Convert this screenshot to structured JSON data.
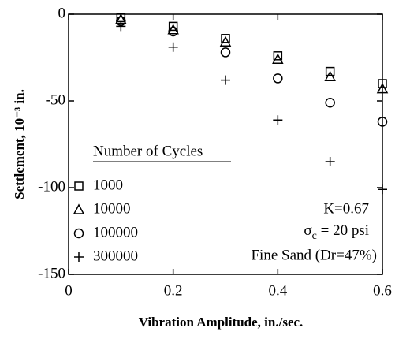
{
  "chart_data": {
    "type": "scatter",
    "xlabel": "Vibration Amplitude, in./sec.",
    "ylabel": "Settlement, 10⁻³ in.",
    "x": [
      0.1,
      0.2,
      0.3,
      0.4,
      0.5,
      0.6
    ],
    "series": [
      {
        "name": "1000",
        "marker": "square",
        "color": "#000000",
        "values": [
          -2,
          -7,
          -14,
          -24,
          -33,
          -40
        ]
      },
      {
        "name": "10000",
        "marker": "triangle",
        "color": "#000000",
        "values": [
          -3,
          -9,
          -16,
          -26,
          -36,
          -43
        ]
      },
      {
        "name": "100000",
        "marker": "circle",
        "color": "#000000",
        "values": [
          -4,
          -10,
          -22,
          -37,
          -51,
          -62
        ]
      },
      {
        "name": "300000",
        "marker": "plus",
        "color": "#000000",
        "values": [
          -7,
          -19,
          -38,
          -61,
          -85,
          -101
        ]
      }
    ],
    "legend_title": "Number of Cycles",
    "annotations": {
      "k": "K=0.67",
      "sigma": "σ",
      "sigma_sub": "c",
      "sigma_rest": " = 20 psi",
      "soil": "Fine Sand (Dr=47%)"
    },
    "xlim": [
      0,
      0.6
    ],
    "xticks": [
      0,
      0.2,
      0.4,
      0.6
    ],
    "ylim": [
      -150,
      0
    ],
    "yticks": [
      0,
      -50,
      -100,
      -150
    ]
  }
}
